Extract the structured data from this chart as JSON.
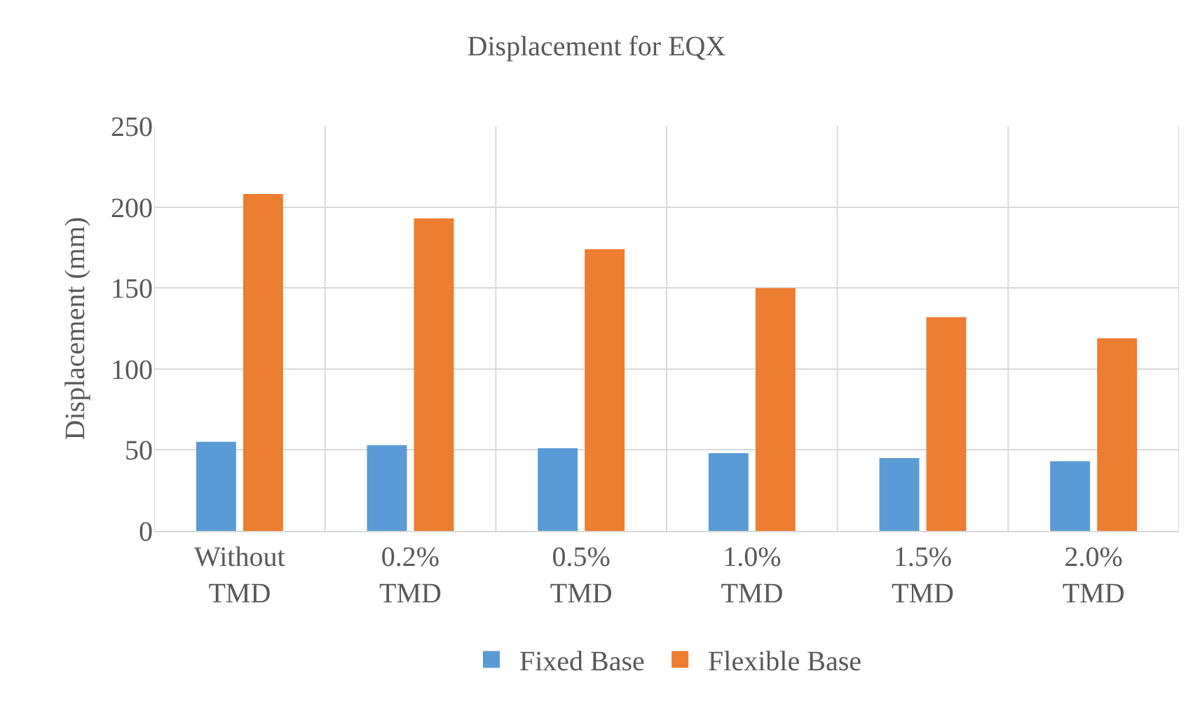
{
  "chart_data": {
    "type": "bar",
    "title": "Displacement for EQX",
    "ylabel": "Displacement (mm)",
    "categories": [
      "Without TMD",
      "0.2% TMD",
      "0.5% TMD",
      "1.0% TMD",
      "1.5% TMD",
      "2.0% TMD"
    ],
    "series": [
      {
        "name": "Fixed Base",
        "color": "#5b9bd5",
        "values": [
          55,
          53,
          51,
          48,
          45,
          43
        ]
      },
      {
        "name": "Flexible Base",
        "color": "#ed7d31",
        "values": [
          208,
          193,
          174,
          150,
          132,
          119
        ]
      }
    ],
    "ylim": [
      0,
      250
    ],
    "yticks": [
      0,
      50,
      100,
      150,
      200,
      250
    ],
    "grid": true,
    "legend": "bottom"
  }
}
